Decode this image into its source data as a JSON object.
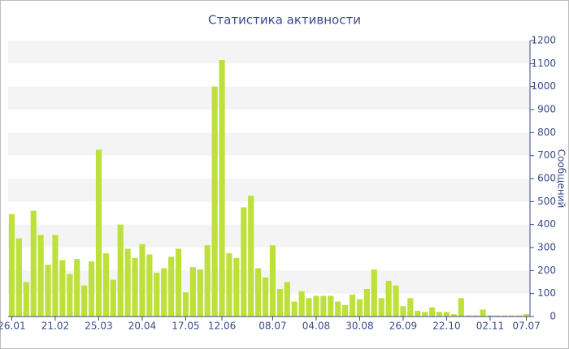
{
  "chart_data": {
    "type": "bar",
    "title": "Статистика активности",
    "y_axis_label": "Сообщений",
    "y_axis_side": "right",
    "color": "#bde03a",
    "grid": "bands",
    "ylim": [
      0,
      1200
    ],
    "yticks": [
      0,
      100,
      200,
      300,
      400,
      500,
      600,
      700,
      800,
      900,
      1000,
      1100,
      1200
    ],
    "categories": [
      "26.01",
      null,
      null,
      null,
      null,
      null,
      "21.02",
      null,
      null,
      null,
      null,
      null,
      "25.03",
      null,
      null,
      null,
      null,
      null,
      "20.04",
      null,
      null,
      null,
      null,
      null,
      "17.05",
      null,
      null,
      null,
      null,
      "12.06",
      null,
      null,
      null,
      null,
      null,
      null,
      "08.07",
      null,
      null,
      null,
      null,
      null,
      "04.08",
      null,
      null,
      null,
      null,
      null,
      "30.08",
      null,
      null,
      null,
      null,
      null,
      "26.09",
      null,
      null,
      null,
      null,
      null,
      "22.10",
      null,
      null,
      null,
      null,
      null,
      "02.11",
      null,
      null,
      null,
      null,
      "07.07"
    ],
    "values": [
      445,
      340,
      150,
      460,
      355,
      225,
      355,
      245,
      185,
      250,
      135,
      240,
      725,
      275,
      160,
      400,
      295,
      255,
      315,
      270,
      190,
      210,
      260,
      295,
      105,
      215,
      205,
      310,
      1000,
      1115,
      275,
      255,
      475,
      525,
      210,
      170,
      310,
      120,
      150,
      65,
      110,
      80,
      90,
      90,
      90,
      65,
      50,
      95,
      75,
      120,
      205,
      80,
      155,
      135,
      45,
      80,
      25,
      20,
      40,
      20,
      20,
      10,
      80,
      5,
      5,
      30,
      5,
      5,
      5,
      5,
      5,
      10
    ]
  }
}
